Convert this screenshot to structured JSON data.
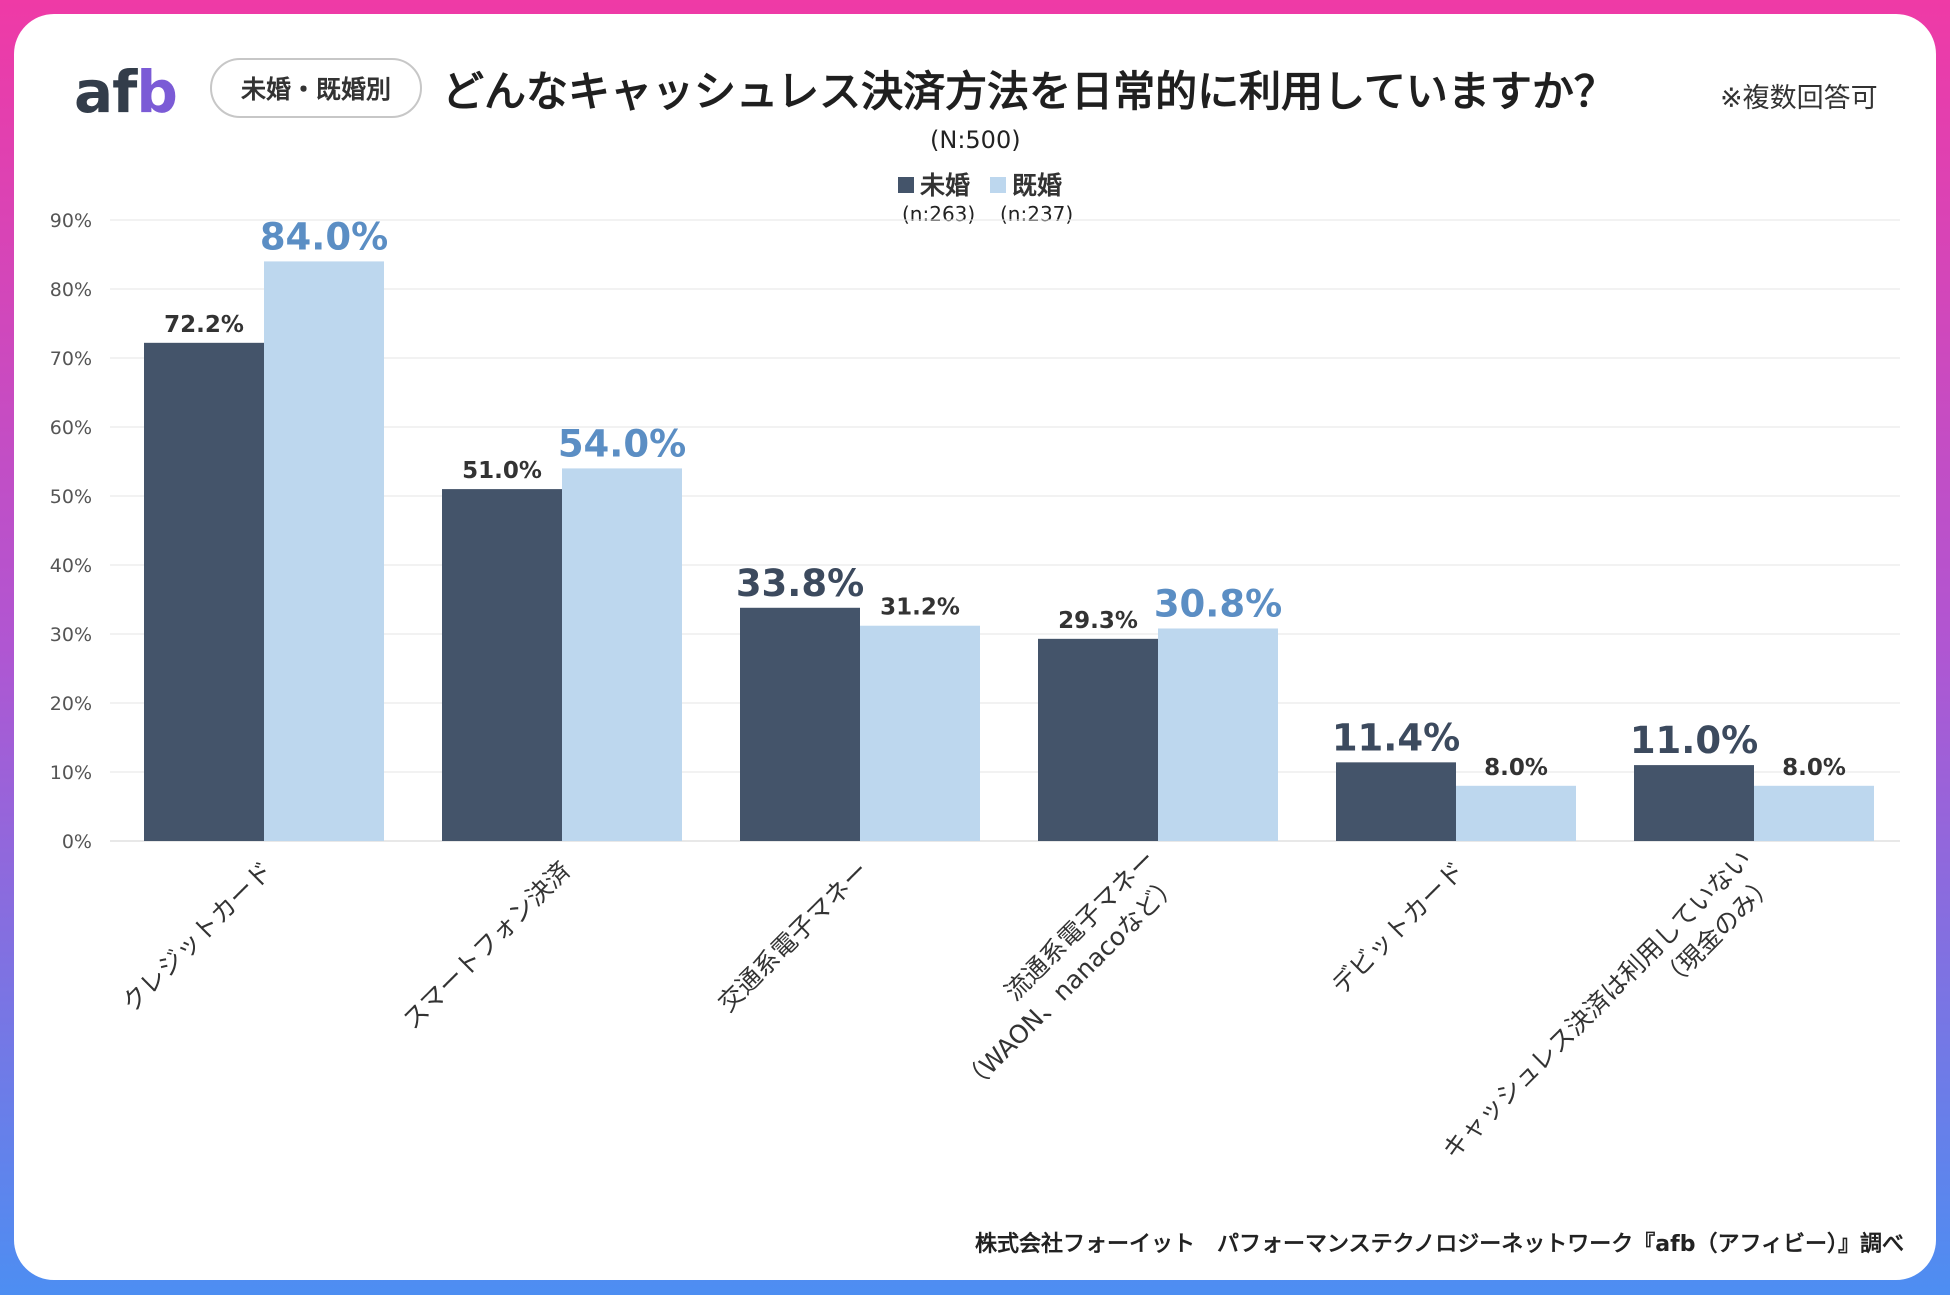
{
  "header": {
    "logo_main": "af",
    "logo_accent": "b",
    "tag": "未婚・既婚別",
    "title": "どんなキャッシュレス決済方法を日常的に利用していますか？",
    "note": "※複数回答可",
    "sample": "(N:500)"
  },
  "colors": {
    "unmarried": "#44546a",
    "married": "#bdd7ee",
    "highlight_married": "#5b8ec4",
    "highlight_unmarried": "#3c4a5e"
  },
  "chart_data": {
    "type": "bar",
    "categories": [
      [
        "クレジットカード"
      ],
      [
        "スマートフォン決済"
      ],
      [
        "交通系電子マネー"
      ],
      [
        "流通系電子マネー",
        "（WAON、nanacoなど）"
      ],
      [
        "デビットカード"
      ],
      [
        "キャッシュレス決済は利用していない",
        "（現金のみ）"
      ]
    ],
    "series": [
      {
        "name": "未婚",
        "n": "(n:263)",
        "values": [
          72.2,
          51.0,
          33.8,
          29.3,
          11.4,
          11.0
        ],
        "labels": [
          "72.2%",
          "51.0%",
          "33.8%",
          "29.3%",
          "11.4%",
          "11.0%"
        ],
        "highlight": [
          false,
          false,
          true,
          false,
          true,
          true
        ]
      },
      {
        "name": "既婚",
        "n": "(n:237)",
        "values": [
          84.0,
          54.0,
          31.2,
          30.8,
          8.0,
          8.0
        ],
        "labels": [
          "84.0%",
          "54.0%",
          "31.2%",
          "30.8%",
          "8.0%",
          "8.0%"
        ],
        "highlight": [
          true,
          true,
          false,
          true,
          false,
          false
        ]
      }
    ],
    "yticks": [
      "0%",
      "10%",
      "20%",
      "30%",
      "40%",
      "50%",
      "60%",
      "70%",
      "80%",
      "90%"
    ],
    "ylim": [
      0,
      90
    ],
    "title": "どんなキャッシュレス決済方法を日常的に利用していますか？",
    "xlabel": "",
    "ylabel": "",
    "legend": "top-center",
    "grid": true
  },
  "footer": "株式会社フォーイット　パフォーマンステクノロジーネットワーク『afb（アフィビー）』調べ"
}
